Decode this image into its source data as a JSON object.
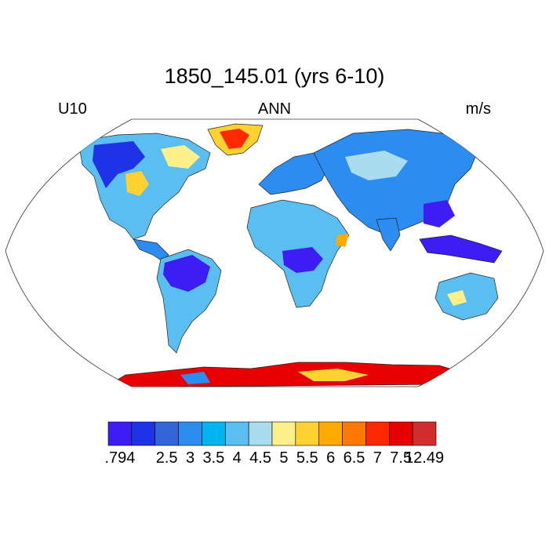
{
  "title": "1850_145.01 (yrs 6-10)",
  "variable": "U10",
  "season": "ANN",
  "units": "m/s",
  "chart_data": {
    "type": "heatmap",
    "map_projection": "Robinson",
    "field": "U10",
    "units": "m/s",
    "colorbar": {
      "orientation": "horizontal",
      "tick_labels": [
        ".794",
        "2.5",
        "3",
        "3.5",
        "4",
        "4.5",
        "5",
        "5.5",
        "6",
        "6.5",
        "7",
        "7.5",
        "12.49"
      ],
      "bins": [
        {
          "range": [
            0.794,
            2.5
          ],
          "color": "#3c1ef5"
        },
        {
          "range": [
            2.5,
            3
          ],
          "color": "#1e32e6"
        },
        {
          "range": [
            3,
            3.5
          ],
          "color": "#3264dc"
        },
        {
          "range": [
            3.5,
            4
          ],
          "color": "#2d8cf0"
        },
        {
          "range": [
            4,
            4.5
          ],
          "color": "#00b4f0"
        },
        {
          "range": [
            4.5,
            5
          ],
          "color": "#5abef0"
        },
        {
          "range": [
            5,
            5.5
          ],
          "color": "#aadcf0"
        },
        {
          "range": [
            5.5,
            6
          ],
          "color": "#fff08c"
        },
        {
          "range": [
            6,
            6.5
          ],
          "color": "#ffd232"
        },
        {
          "range": [
            6.5,
            7
          ],
          "color": "#ffaa00"
        },
        {
          "range": [
            7,
            7.5
          ],
          "color": "#ff7800"
        },
        {
          "range": [
            7.5,
            12.49
          ],
          "color": "#ff2800"
        },
        {
          "range": [
            7.5,
            12.49
          ],
          "color": "#e60000"
        },
        {
          "range": [
            7.5,
            12.49
          ],
          "color": "#d22d2d"
        }
      ]
    },
    "regions": [
      {
        "name": "Amazon",
        "level": "low",
        "color": "#3c1ef5"
      },
      {
        "name": "Congo",
        "level": "low",
        "color": "#3c1ef5"
      },
      {
        "name": "Maritime Continent",
        "level": "low",
        "color": "#3c1ef5"
      },
      {
        "name": "Greenland",
        "level": "high",
        "color": "#ff2800"
      },
      {
        "name": "Antarctica",
        "level": "high",
        "color": "#e60000"
      }
    ]
  }
}
